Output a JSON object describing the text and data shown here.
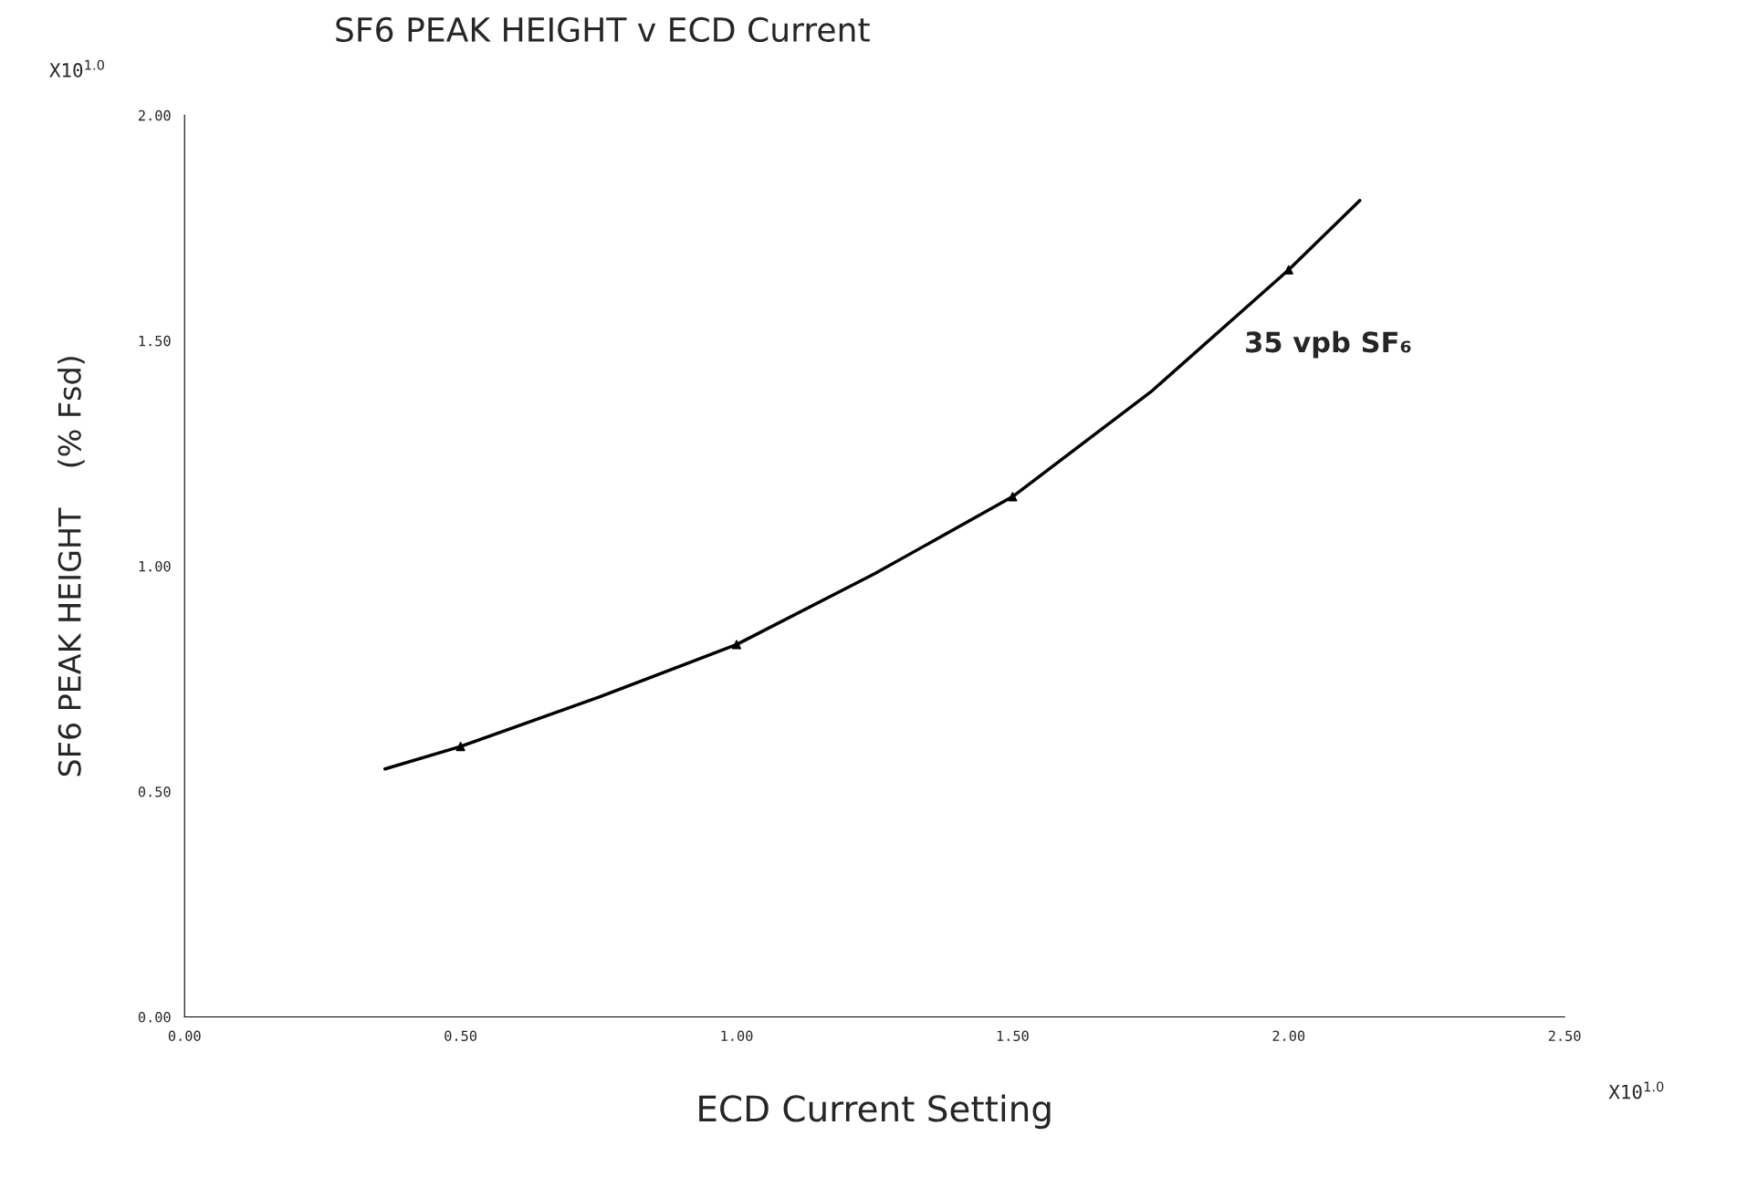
{
  "chart_data": {
    "type": "line",
    "title": "SF6 PEAK HEIGHT v ECD Current",
    "xlabel": "ECD Current Setting",
    "ylabel": "SF6 PEAK HEIGHT    (% Fsd)",
    "xlim": [
      0,
      2.5
    ],
    "ylim": [
      0,
      2.0
    ],
    "xticks": [
      {
        "value": 0,
        "label": "0.00"
      },
      {
        "value": 0.5,
        "label": "0.50"
      },
      {
        "value": 1.0,
        "label": "1.00"
      },
      {
        "value": 1.5,
        "label": "1.50"
      },
      {
        "value": 2.0,
        "label": "2.00"
      },
      {
        "value": 2.5,
        "label": "2.50"
      }
    ],
    "yticks": [
      {
        "value": 0,
        "label": "0.00"
      },
      {
        "value": 0.5,
        "label": "0.50"
      },
      {
        "value": 1.0,
        "label": "1.00"
      },
      {
        "value": 1.5,
        "label": "1.50"
      },
      {
        "value": 2.0,
        "label": "2.00"
      }
    ],
    "grid": false,
    "series": [
      {
        "color": "#000000",
        "marker": "none",
        "line_style": "solid",
        "x": [
          0.363,
          0.5,
          0.75,
          1.0,
          1.25,
          1.5,
          1.75,
          2.0,
          2.129
        ],
        "values": [
          0.55,
          0.6,
          0.709,
          0.826,
          0.983,
          1.154,
          1.386,
          1.657,
          1.811
        ]
      },
      {
        "type": "scatter",
        "color": "#000000",
        "marker": "triangle",
        "x": [
          0.5,
          1.0,
          1.5,
          2.0
        ],
        "values": [
          0.6,
          0.826,
          1.154,
          1.657
        ]
      }
    ],
    "annotations": [
      {
        "text": "35 vpb SF₆",
        "x": 2.0,
        "y": 1.657
      },
      "X10$^{1.0}$",
      "X10$^{1.0}$"
    ]
  }
}
